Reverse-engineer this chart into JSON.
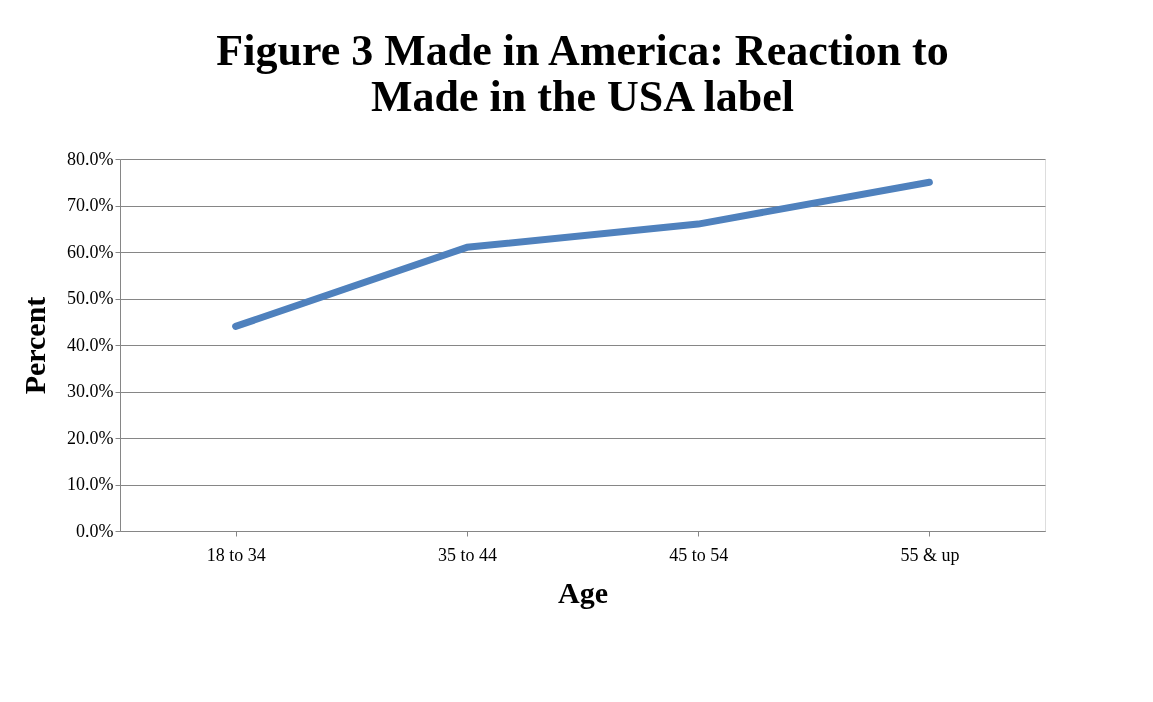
{
  "chart_data": {
    "type": "line",
    "title": [
      "Figure 3 Made in America: Reaction to",
      "Made in the USA label"
    ],
    "xlabel": "Age",
    "ylabel": "Percent",
    "categories": [
      "18 to 34",
      "35 to 44",
      "45 to 54",
      "55 & up"
    ],
    "series": [
      {
        "color": "#4f81bd",
        "values": [
          44,
          61,
          66,
          75
        ]
      }
    ],
    "ylim": [
      0,
      80
    ],
    "yticks": [
      {
        "value": 0,
        "label": "0.0%"
      },
      {
        "value": 10,
        "label": "10.0%"
      },
      {
        "value": 20,
        "label": "20.0%"
      },
      {
        "value": 30,
        "label": "30.0%"
      },
      {
        "value": 40,
        "label": "40.0%"
      },
      {
        "value": 50,
        "label": "50.0%"
      },
      {
        "value": 60,
        "label": "60.0%"
      },
      {
        "value": 70,
        "label": "70.0%"
      },
      {
        "value": 80,
        "label": "80.0%"
      }
    ],
    "grid": "y",
    "marker": "none",
    "line_style": "solid"
  }
}
